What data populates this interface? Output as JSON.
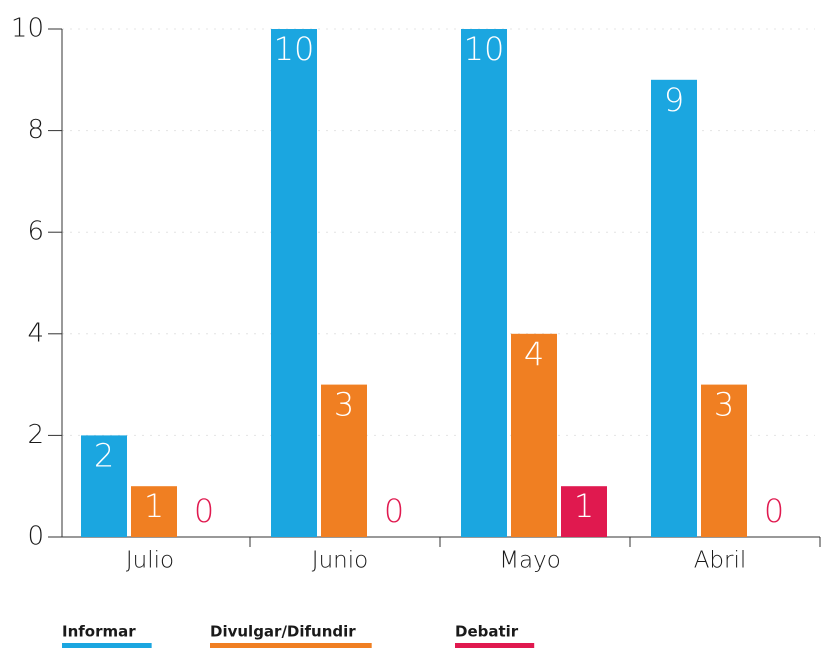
{
  "chart_data": {
    "type": "bar",
    "categories": [
      "Julio",
      "Junio",
      "Mayo",
      "Abril"
    ],
    "series": [
      {
        "name": "Informar",
        "color": "#1ba6e0",
        "values": [
          2,
          10,
          10,
          9
        ]
      },
      {
        "name": "Divulgar/Difundir",
        "color": "#f07f22",
        "values": [
          1,
          3,
          4,
          3
        ]
      },
      {
        "name": "Debatir",
        "color": "#e0194f",
        "values": [
          0,
          0,
          1,
          0
        ]
      }
    ],
    "ylim": [
      0,
      10
    ],
    "yticks": [
      0,
      2,
      4,
      6,
      8,
      10
    ],
    "grid": true
  }
}
